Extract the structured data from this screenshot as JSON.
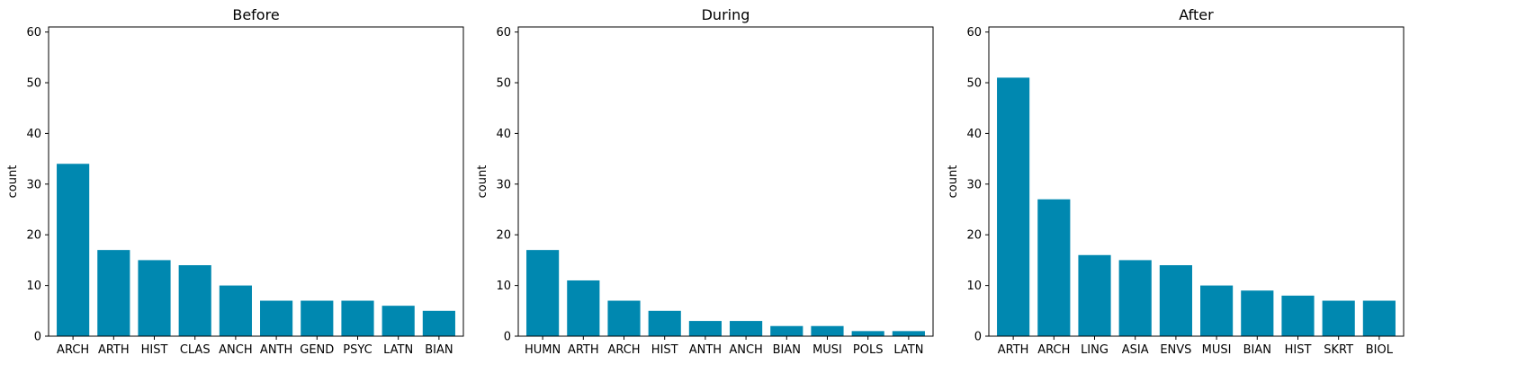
{
  "chart_data": [
    {
      "type": "bar",
      "title": "Before",
      "ylabel": "count",
      "xlabel": "",
      "ylim": [
        0,
        61
      ],
      "yticks": [
        0,
        10,
        20,
        30,
        40,
        50,
        60
      ],
      "categories": [
        "ARCH",
        "ARTH",
        "HIST",
        "CLAS",
        "ANCH",
        "ANTH",
        "GEND",
        "PSYC",
        "LATN",
        "BIAN"
      ],
      "values": [
        34,
        17,
        15,
        14,
        10,
        7,
        7,
        7,
        6,
        5
      ],
      "grid": false
    },
    {
      "type": "bar",
      "title": "During",
      "ylabel": "count",
      "xlabel": "",
      "ylim": [
        0,
        61
      ],
      "yticks": [
        0,
        10,
        20,
        30,
        40,
        50,
        60
      ],
      "categories": [
        "HUMN",
        "ARTH",
        "ARCH",
        "HIST",
        "ANTH",
        "ANCH",
        "BIAN",
        "MUSI",
        "POLS",
        "LATN"
      ],
      "values": [
        17,
        11,
        7,
        5,
        3,
        3,
        2,
        2,
        1,
        1
      ],
      "grid": false
    },
    {
      "type": "bar",
      "title": "After",
      "ylabel": "count",
      "xlabel": "",
      "ylim": [
        0,
        61
      ],
      "yticks": [
        0,
        10,
        20,
        30,
        40,
        50,
        60
      ],
      "categories": [
        "ARTH",
        "ARCH",
        "LING",
        "ASIA",
        "ENVS",
        "MUSI",
        "BIAN",
        "HIST",
        "SKRT",
        "BIOL"
      ],
      "values": [
        51,
        27,
        16,
        15,
        14,
        10,
        9,
        8,
        7,
        7
      ],
      "grid": false
    }
  ],
  "colors": {
    "bar": "#0088b0"
  }
}
